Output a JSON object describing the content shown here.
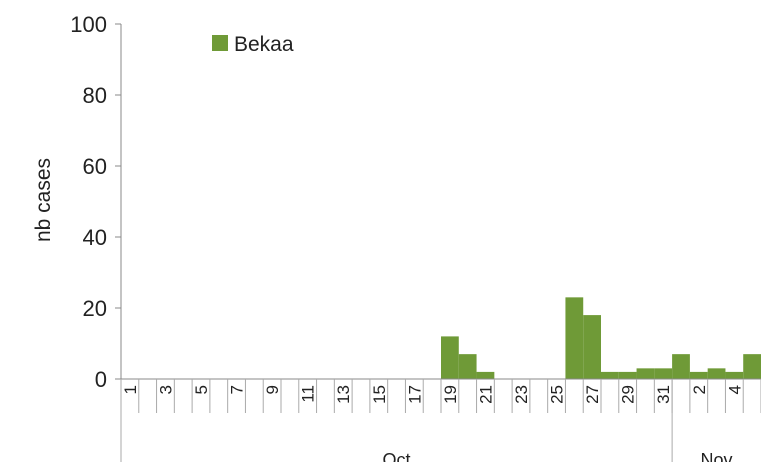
{
  "chart_data": {
    "type": "bar",
    "ylabel": "nb cases",
    "ylim": [
      0,
      100
    ],
    "yticks": [
      0,
      20,
      40,
      60,
      80,
      100
    ],
    "grid": false,
    "legend_position": "top-left",
    "categories": [
      "1",
      "2",
      "3",
      "4",
      "5",
      "6",
      "7",
      "8",
      "9",
      "10",
      "11",
      "12",
      "13",
      "14",
      "15",
      "16",
      "17",
      "18",
      "19",
      "20",
      "21",
      "22",
      "23",
      "24",
      "25",
      "26",
      "27",
      "28",
      "29",
      "30",
      "31",
      "1",
      "2",
      "3",
      "4",
      "5"
    ],
    "tick_labels": [
      "1",
      "",
      "3",
      "",
      "5",
      "",
      "7",
      "",
      "9",
      "",
      "11",
      "",
      "13",
      "",
      "15",
      "",
      "17",
      "",
      "19",
      "",
      "21",
      "",
      "23",
      "",
      "25",
      "",
      "27",
      "",
      "29",
      "",
      "31",
      "",
      "2",
      "",
      "4",
      ""
    ],
    "months": [
      {
        "label": "Oct",
        "start_index": 0,
        "end_index": 30
      },
      {
        "label": "Nov",
        "start_index": 31,
        "end_index": 35
      }
    ],
    "series": [
      {
        "name": "Bekaa",
        "color": "#6f9a37",
        "values": [
          0,
          0,
          0,
          0,
          0,
          0,
          0,
          0,
          0,
          0,
          0,
          0,
          0,
          0,
          0,
          0,
          0,
          0,
          12,
          7,
          2,
          0,
          0,
          0,
          0,
          23,
          18,
          2,
          2,
          3,
          3,
          7,
          2,
          3,
          2,
          7
        ]
      }
    ]
  }
}
